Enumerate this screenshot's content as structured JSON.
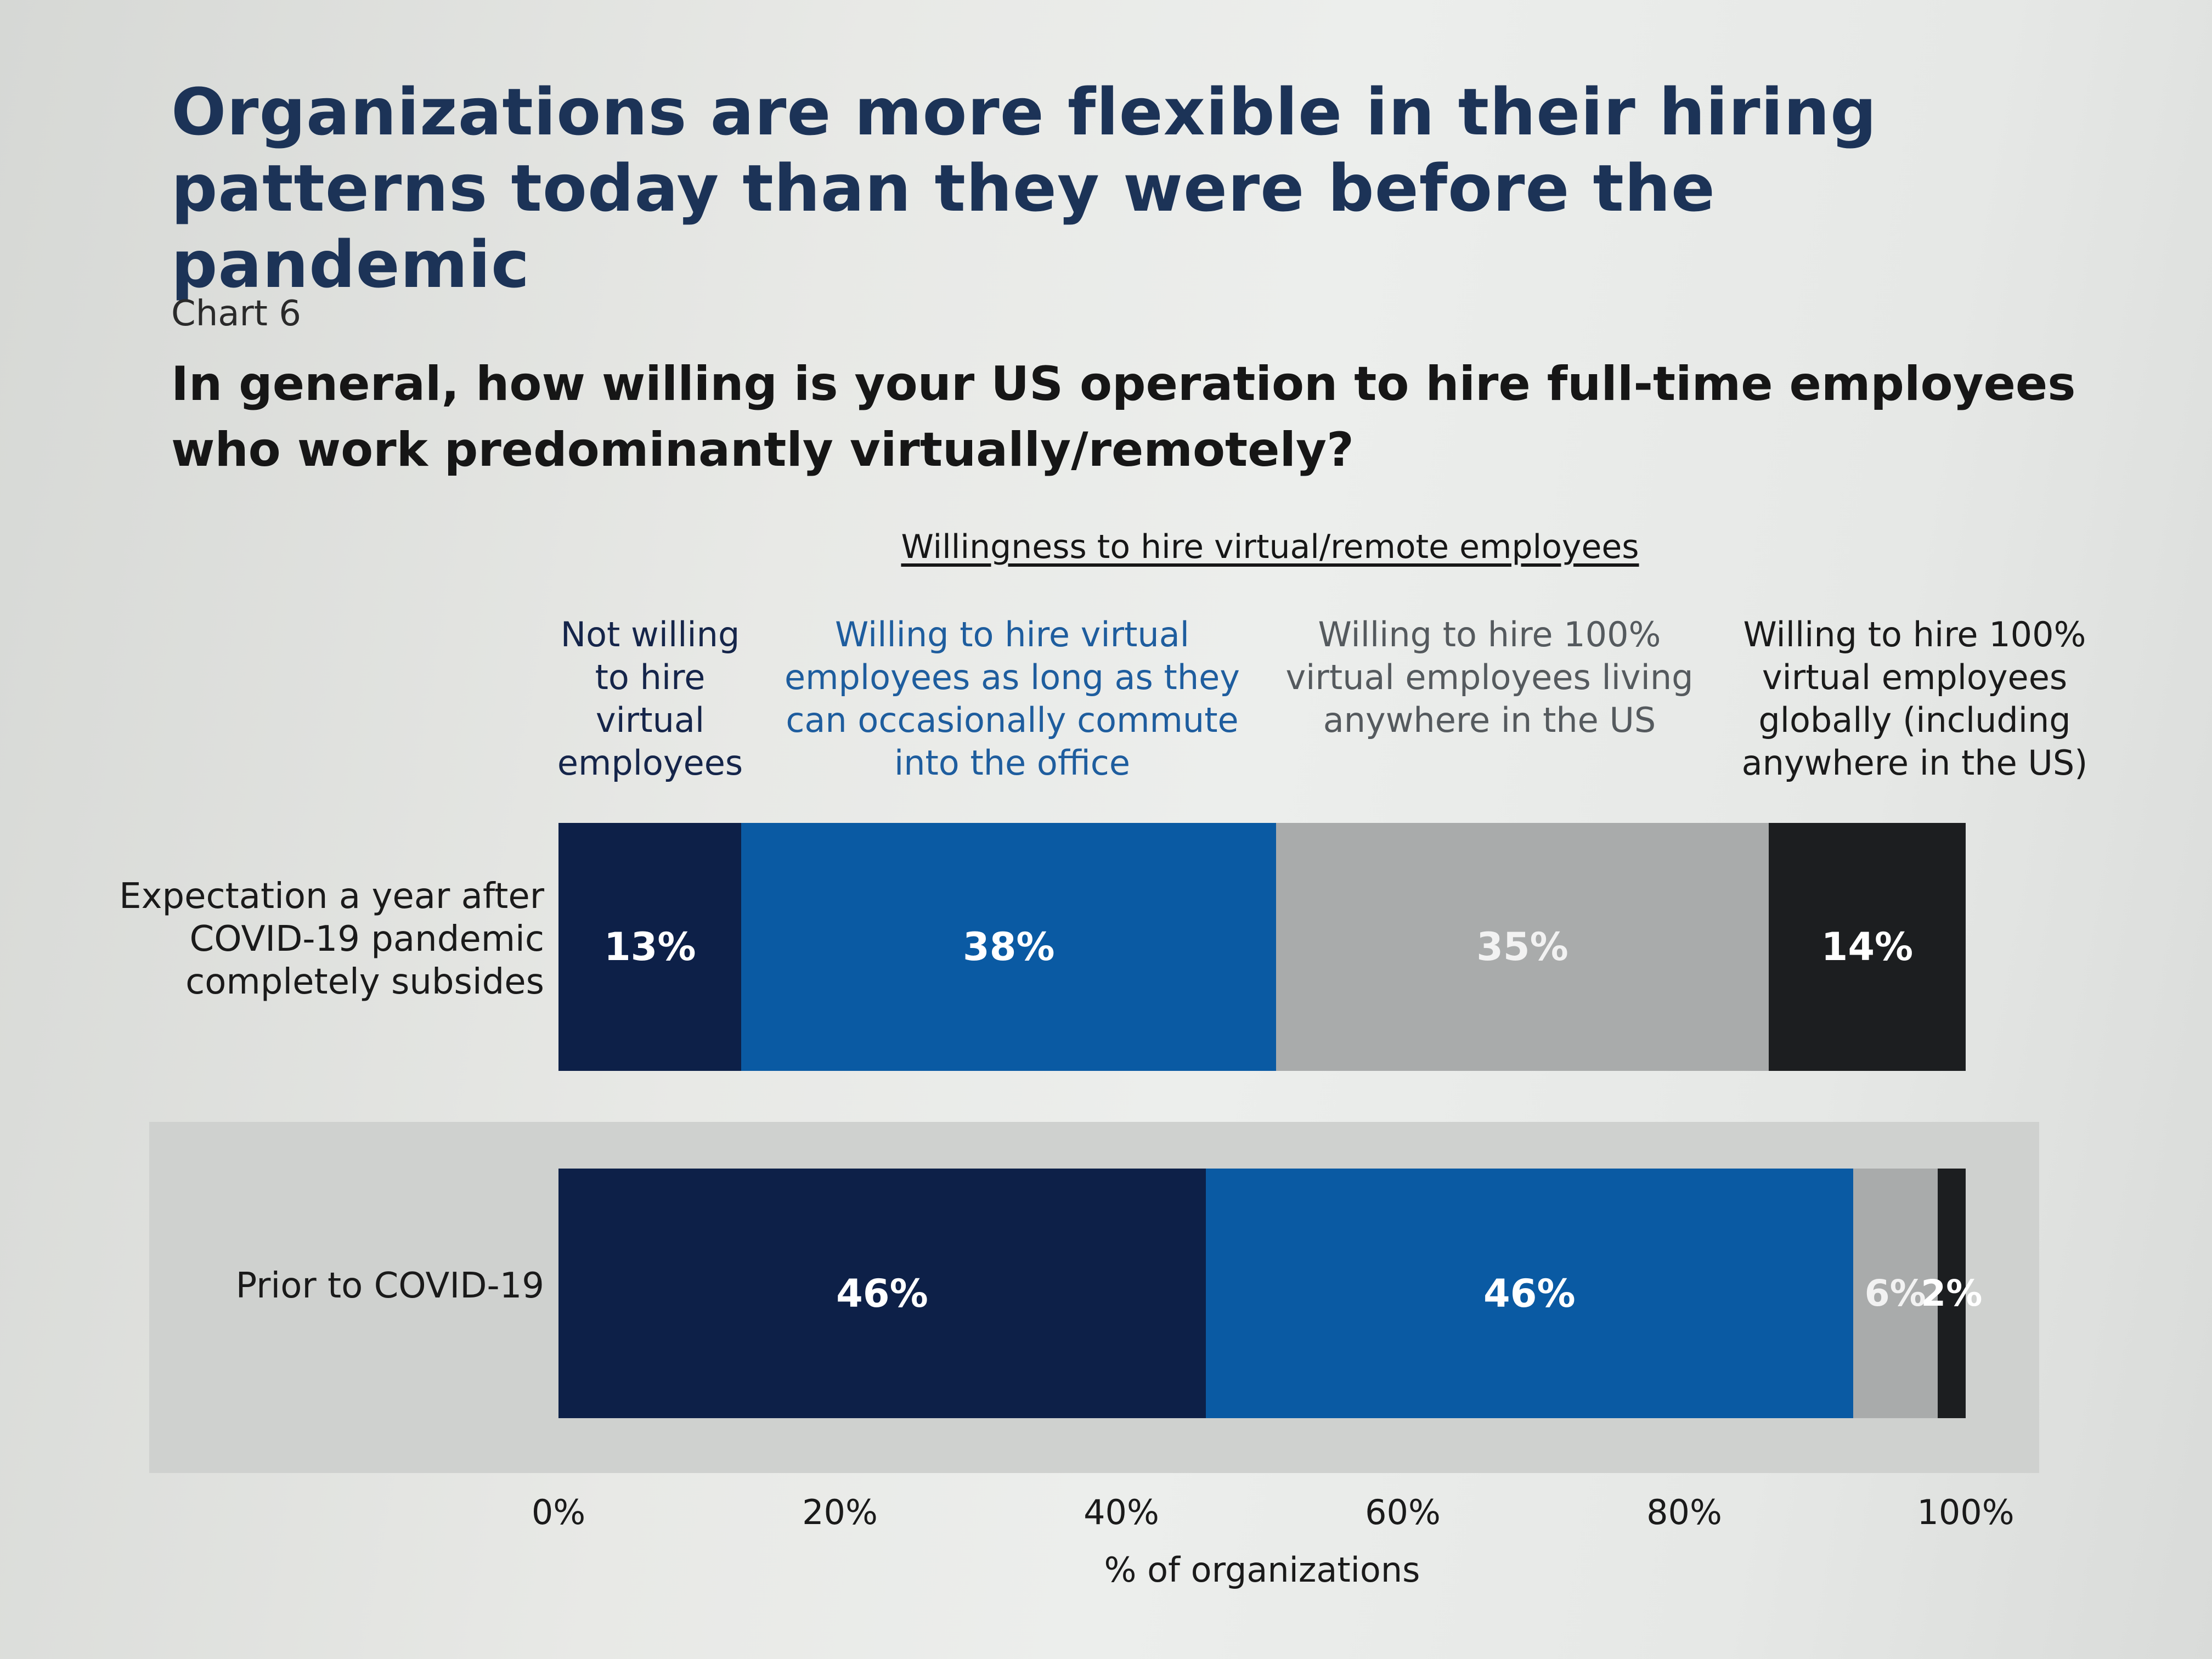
{
  "headline": "Organizations are more flexible in their hiring patterns today than they were before the pandemic",
  "chart_number": "Chart 6",
  "question": "In general, how willing is your US operation to hire full-time employees who work predominantly virtually/remotely?",
  "colors": {
    "not_willing": "#0d2048",
    "commute": "#0a5aa3",
    "us_anywhere": "#a9abab",
    "global": "#1c1e20",
    "headline": "#1c3357"
  },
  "chart_data": {
    "type": "bar",
    "orientation": "horizontal",
    "stacked": true,
    "title": "Willingness to hire virtual/remote employees",
    "xlabel": "% of organizations",
    "ylabel": "",
    "xlim": [
      0,
      100
    ],
    "x_ticks": [
      "0%",
      "20%",
      "40%",
      "60%",
      "80%",
      "100%"
    ],
    "categories": [
      "Expectation a year after COVID-19 pandemic completely subsides",
      "Prior to COVID-19"
    ],
    "series": [
      {
        "name": "Not willing to hire virtual employees",
        "values": [
          13,
          46
        ]
      },
      {
        "name": "Willing to hire virtual employees as long as they can occasionally commute into the office",
        "values": [
          38,
          46
        ]
      },
      {
        "name": "Willing to hire 100% virtual employees living anywhere in the US",
        "values": [
          35,
          6
        ]
      },
      {
        "name": "Willing to hire 100% virtual employees globally (including anywhere in the US)",
        "values": [
          14,
          2
        ]
      }
    ],
    "data_labels": [
      [
        "13%",
        "38%",
        "35%",
        "14%"
      ],
      [
        "46%",
        "46%",
        "6%",
        "2%"
      ]
    ],
    "grid": false
  }
}
